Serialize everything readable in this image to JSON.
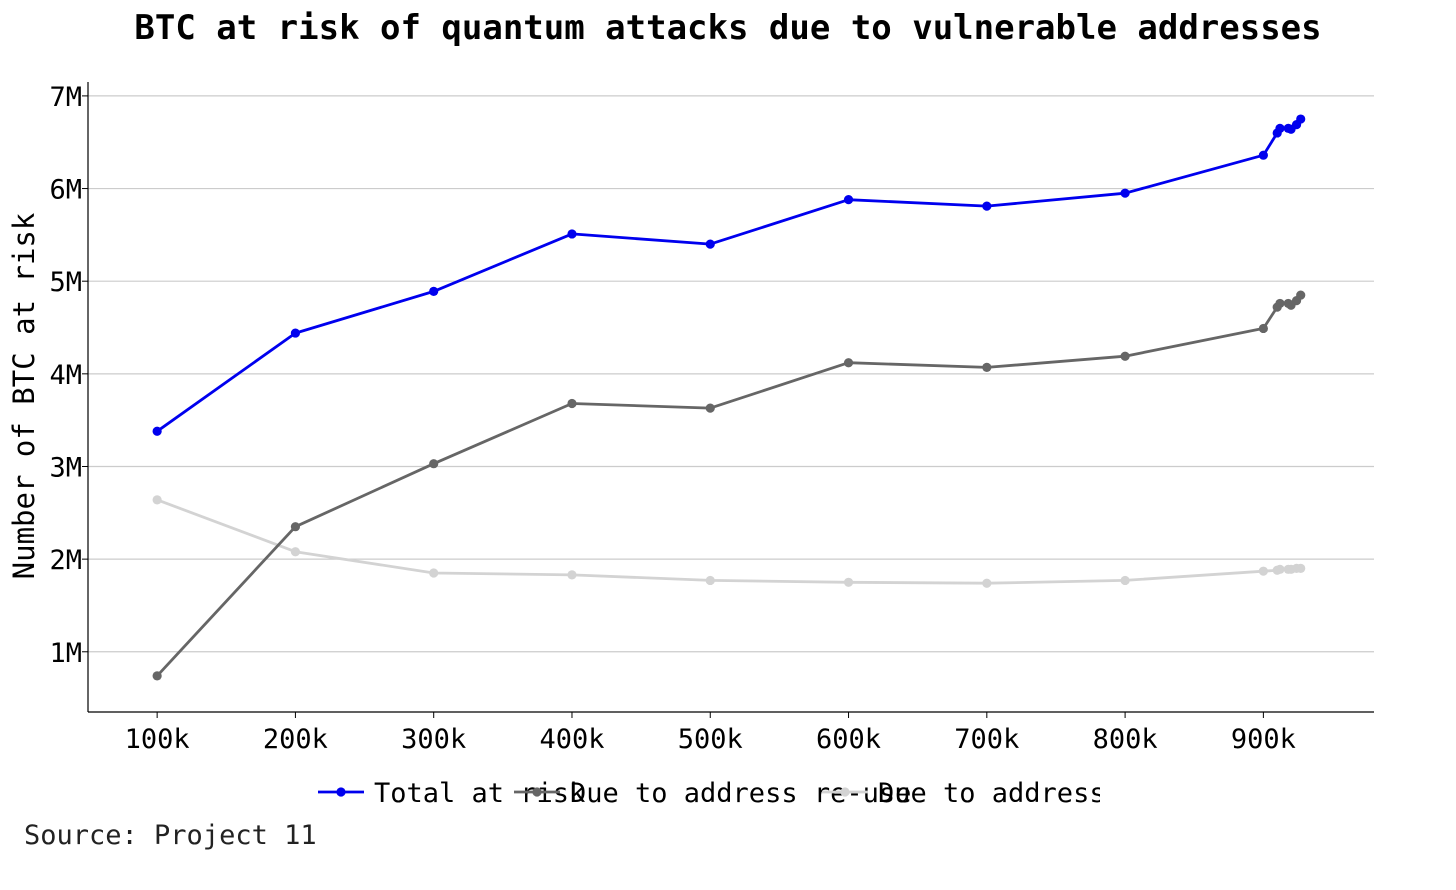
{
  "chart_data": {
    "type": "line",
    "title": "BTC at risk of quantum attacks due to vulnerable addresses",
    "xlabel": "",
    "ylabel": "Number of BTC at risk",
    "x_ticks": [
      100000,
      200000,
      300000,
      400000,
      500000,
      600000,
      700000,
      800000,
      900000
    ],
    "x_tick_labels": [
      "100k",
      "200k",
      "300k",
      "400k",
      "500k",
      "600k",
      "700k",
      "800k",
      "900k"
    ],
    "y_ticks": [
      1000000,
      2000000,
      3000000,
      4000000,
      5000000,
      6000000,
      7000000
    ],
    "y_tick_labels": [
      "1M",
      "2M",
      "3M",
      "4M",
      "5M",
      "6M",
      "7M"
    ],
    "xlim": [
      50000,
      980000
    ],
    "ylim": [
      350000,
      7150000
    ],
    "grid": "horizontal",
    "legend_position": "bottom",
    "x": [
      100000,
      200000,
      300000,
      400000,
      500000,
      600000,
      700000,
      800000,
      900000,
      910000,
      912000,
      918000,
      920000,
      924000,
      927000
    ],
    "series": [
      {
        "name": "Total at risk",
        "color": "#0000ee",
        "values": [
          3380000,
          4440000,
          4890000,
          5510000,
          5400000,
          5880000,
          5810000,
          5950000,
          6360000,
          6600000,
          6650000,
          6650000,
          6640000,
          6690000,
          6750000
        ]
      },
      {
        "name": "Due to address type",
        "color": "#d3d3d3",
        "values": [
          2640000,
          2080000,
          1850000,
          1830000,
          1770000,
          1750000,
          1740000,
          1770000,
          1870000,
          1880000,
          1890000,
          1890000,
          1890000,
          1900000,
          1900000
        ]
      },
      {
        "name": "Due to address re-use",
        "color": "#666666",
        "values": [
          740000,
          2350000,
          3030000,
          3680000,
          3630000,
          4120000,
          4070000,
          4190000,
          4490000,
          4720000,
          4760000,
          4760000,
          4740000,
          4790000,
          4850000
        ]
      }
    ]
  },
  "legend_labels": [
    "Total at risk",
    "Due to address re-use",
    "Due to address type"
  ],
  "source_note": "Source: Project 11"
}
